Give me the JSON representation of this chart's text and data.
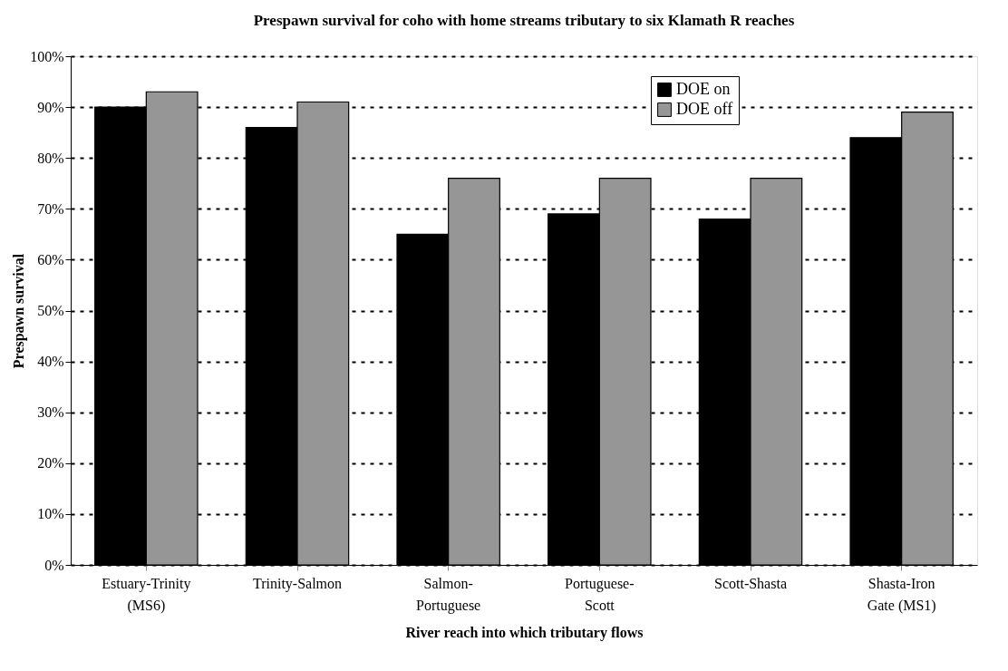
{
  "chart_data": {
    "type": "bar",
    "title": "Prespawn survival for coho with home streams tributary to six Klamath R reaches",
    "xlabel": "River reach into which tributary flows",
    "ylabel": "Prespawn survival",
    "categories": [
      "Estuary-Trinity\n(MS6)",
      "Trinity-Salmon",
      "Salmon-\nPortuguese",
      "Portuguese-\nScott",
      "Scott-Shasta",
      "Shasta-Iron\nGate (MS1)"
    ],
    "series": [
      {
        "name": "DOE on",
        "color": "#000000",
        "values": [
          90,
          86,
          65,
          69,
          68,
          84
        ]
      },
      {
        "name": "DOE off",
        "color": "#969696",
        "values": [
          93,
          91,
          76,
          76,
          76,
          89
        ]
      }
    ],
    "ylim": [
      0,
      100
    ],
    "yticks": [
      {
        "value": 0,
        "label": "0%"
      },
      {
        "value": 10,
        "label": "10%"
      },
      {
        "value": 20,
        "label": "20%"
      },
      {
        "value": 30,
        "label": "30%"
      },
      {
        "value": 40,
        "label": "40%"
      },
      {
        "value": 50,
        "label": "50%"
      },
      {
        "value": 60,
        "label": "60%"
      },
      {
        "value": 70,
        "label": "70%"
      },
      {
        "value": 80,
        "label": "80%"
      },
      {
        "value": 90,
        "label": "90%"
      },
      {
        "value": 100,
        "label": "100%"
      }
    ],
    "grid": "y",
    "legend": "top right"
  }
}
